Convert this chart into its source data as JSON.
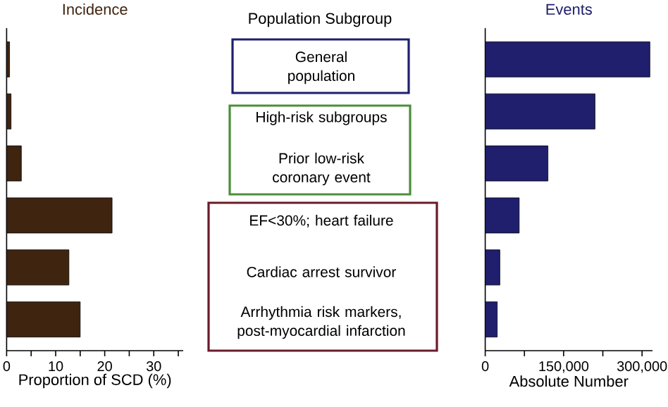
{
  "chart_data": [
    {
      "type": "bar",
      "orientation": "horizontal",
      "title": "Incidence",
      "xlabel": "Proportion of SCD (%)",
      "categories": [
        null,
        null,
        null,
        null,
        null,
        null
      ],
      "values": [
        0.6,
        0.9,
        3.0,
        21.5,
        12.7,
        15.0
      ],
      "color": "#3f2410",
      "xlim": [
        0,
        36
      ],
      "xticks": [
        0,
        {
          "value": 5,
          "label": null
        },
        10,
        {
          "value": 15,
          "label": null
        },
        20,
        {
          "value": 25,
          "label": null
        },
        30,
        {
          "value": 35,
          "label": null
        }
      ]
    },
    {
      "type": "other",
      "title": "Population Subgroup",
      "annotations": [
        "General population",
        "High-risk subgroups",
        "Prior low-risk coronary event",
        "EF<30%; heart failure",
        "Cardiac arrest survivor",
        "Arrhythmia risk markers, post-myocardial infarction"
      ]
    },
    {
      "type": "bar",
      "orientation": "horizontal",
      "title": "Events",
      "xlabel": "Absolute Number",
      "categories": [
        null,
        null,
        null,
        null,
        null,
        null
      ],
      "values": [
        315000,
        210000,
        120000,
        65000,
        28000,
        23000
      ],
      "color": "#1f1f6e",
      "xlim": [
        0,
        320000
      ],
      "xticks": [
        0,
        {
          "value": 75000,
          "label": null
        },
        {
          "value": 150000,
          "label": "150,000"
        },
        {
          "value": 225000,
          "label": null
        },
        {
          "value": 300000,
          "label": "300,000"
        }
      ]
    }
  ]
}
